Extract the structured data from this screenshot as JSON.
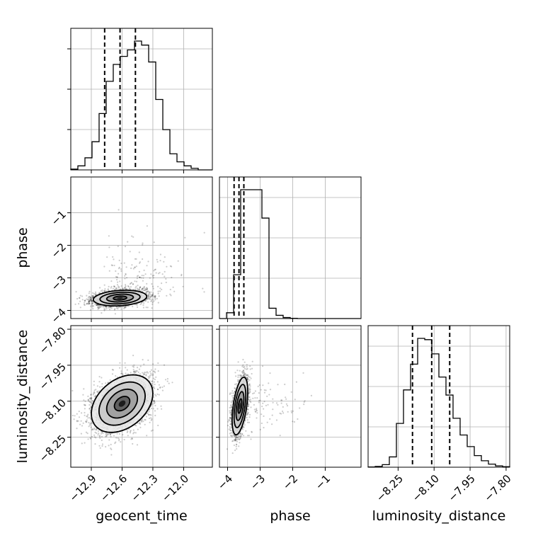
{
  "chart_data": {
    "type": "corner",
    "parameters": [
      "geocent_time",
      "phase",
      "luminosity_distance"
    ],
    "axis_labels": {
      "x": [
        "geocent_time",
        "phase",
        "luminosity_distance"
      ],
      "y": [
        "",
        "phase",
        "luminosity_distance"
      ]
    },
    "ranges": {
      "geocent_time": [
        -13.1,
        -11.72
      ],
      "phase": [
        -4.25,
        0.1
      ],
      "luminosity_distance": [
        -8.375,
        -7.785
      ]
    },
    "ticks": {
      "geocent_time": {
        "values": [
          -12.9,
          -12.6,
          -12.3,
          -12.0
        ],
        "labels": [
          "−12.9",
          "−12.6",
          "−12.3",
          "−12.0"
        ]
      },
      "phase": {
        "values": [
          -4,
          -3,
          -2,
          -1
        ],
        "labels": [
          "−4",
          "−3",
          "−2",
          "−1"
        ]
      },
      "luminosity_distance": {
        "values": [
          -8.25,
          -8.1,
          -7.95,
          -7.8
        ],
        "labels": [
          "−8.25",
          "−8.10",
          "−7.95",
          "−7.80"
        ]
      }
    },
    "grid": true,
    "quantiles": {
      "geocent_time": [
        -12.77,
        -12.62,
        -12.47
      ],
      "phase": [
        -3.8,
        -3.65,
        -3.5
      ],
      "luminosity_distance": [
        -8.19,
        -8.11,
        -8.035
      ]
    },
    "histograms": {
      "geocent_time": {
        "bin_start": -13.1,
        "bin_width": 0.069,
        "counts": [
          2,
          10,
          30,
          70,
          140,
          220,
          262,
          282,
          298,
          320,
          310,
          268,
          175,
          100,
          40,
          20,
          10,
          4,
          0,
          0
        ]
      },
      "phase": {
        "bin_start": -4.25,
        "bin_width": 0.2175,
        "counts": [
          0,
          45,
          340,
          1000,
          1000,
          1000,
          780,
          80,
          25,
          8,
          2,
          0,
          0,
          0,
          0,
          0,
          0,
          0,
          0,
          0
        ]
      },
      "luminosity_distance": {
        "bin_start": -8.375,
        "bin_width": 0.0295,
        "counts": [
          1,
          3,
          10,
          40,
          170,
          300,
          400,
          500,
          495,
          440,
          350,
          280,
          190,
          125,
          80,
          45,
          25,
          12,
          5,
          2
        ]
      }
    },
    "posterior_2d": {
      "geocent_time_phase": {
        "center": [
          -12.62,
          -3.62
        ],
        "sigma": [
          0.13,
          0.12
        ],
        "correlation": 0.2
      },
      "geocent_time_luminosity_distance": {
        "center": [
          -12.6,
          -8.11
        ],
        "sigma": [
          0.15,
          0.06
        ],
        "correlation": 0.35
      },
      "phase_luminosity_distance": {
        "center": [
          -3.62,
          -8.12
        ],
        "sigma": [
          0.12,
          0.06
        ],
        "correlation": 0.5
      }
    }
  }
}
